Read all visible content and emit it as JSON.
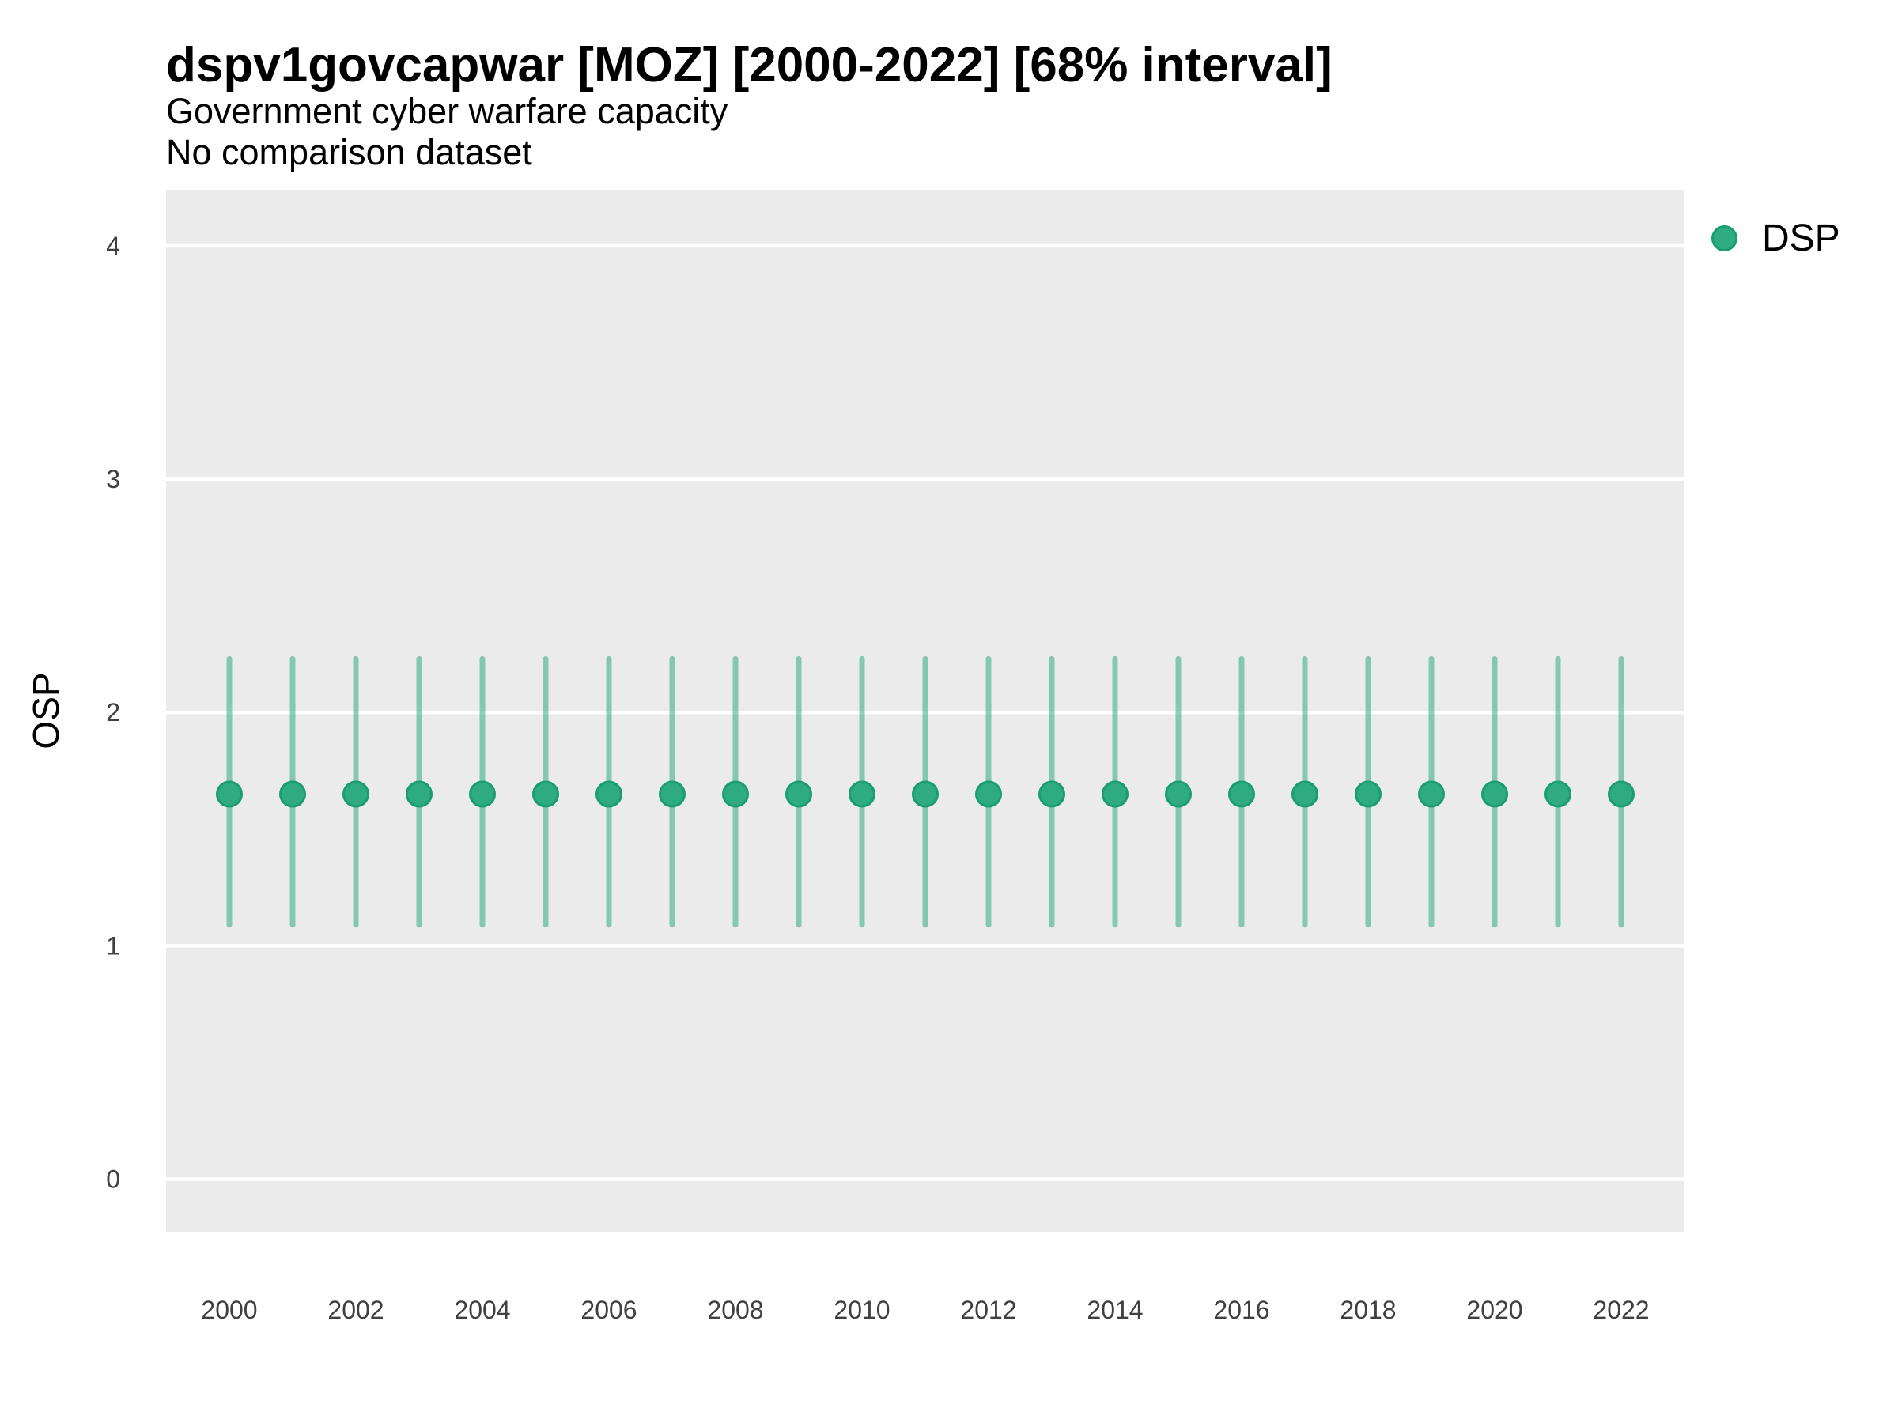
{
  "header": {
    "title": "dspv1govcapwar [MOZ] [2000-2022] [68% interval]",
    "subtitle": "Government cyber warfare capacity",
    "comparison_note": "No comparison dataset"
  },
  "axes": {
    "y_label": "OSP",
    "x_label": ""
  },
  "legend": {
    "label": "DSP"
  },
  "colors": {
    "panel_bg": "#EBEBEB",
    "gridline": "#FFFFFF",
    "point_fill": "#2FAB82",
    "point_stroke": "#1B9D70",
    "interval_bar": "#2FAB82",
    "interval_bar_opacity": 0.55,
    "tick_text": "#404040",
    "title_text": "#000000"
  },
  "chart_data": {
    "type": "scatter",
    "subtype": "point-estimates-with-interval-bars",
    "title": "dspv1govcapwar [MOZ] [2000-2022] [68% interval]",
    "subtitle": "Government cyber warfare capacity",
    "note": "No comparison dataset",
    "interval_level": "68%",
    "xlabel": "",
    "ylabel": "OSP",
    "legend_entries": [
      "DSP"
    ],
    "legend_position": "right-top",
    "grid": "major-horizontal-only",
    "xlim": [
      1999,
      2023
    ],
    "ylim": [
      -0.225,
      4.24
    ],
    "xticks": [
      2000,
      2002,
      2004,
      2006,
      2008,
      2010,
      2012,
      2014,
      2016,
      2018,
      2020,
      2022
    ],
    "yticks": [
      0,
      1,
      2,
      3,
      4
    ],
    "x": [
      2000,
      2001,
      2002,
      2003,
      2004,
      2005,
      2006,
      2007,
      2008,
      2009,
      2010,
      2011,
      2012,
      2013,
      2014,
      2015,
      2016,
      2017,
      2018,
      2019,
      2020,
      2021,
      2022
    ],
    "series": [
      {
        "name": "DSP",
        "estimate": [
          1.65,
          1.65,
          1.65,
          1.65,
          1.65,
          1.65,
          1.65,
          1.65,
          1.65,
          1.65,
          1.65,
          1.65,
          1.65,
          1.65,
          1.65,
          1.65,
          1.65,
          1.65,
          1.65,
          1.65,
          1.65,
          1.65,
          1.65
        ],
        "lower_68": [
          1.09,
          1.09,
          1.09,
          1.09,
          1.09,
          1.09,
          1.09,
          1.09,
          1.09,
          1.09,
          1.09,
          1.09,
          1.09,
          1.09,
          1.09,
          1.09,
          1.09,
          1.09,
          1.09,
          1.09,
          1.09,
          1.09,
          1.09
        ],
        "upper_68": [
          2.23,
          2.23,
          2.23,
          2.23,
          2.23,
          2.23,
          2.23,
          2.23,
          2.23,
          2.23,
          2.23,
          2.23,
          2.23,
          2.23,
          2.23,
          2.23,
          2.23,
          2.23,
          2.23,
          2.23,
          2.23,
          2.23,
          2.23
        ]
      }
    ]
  }
}
